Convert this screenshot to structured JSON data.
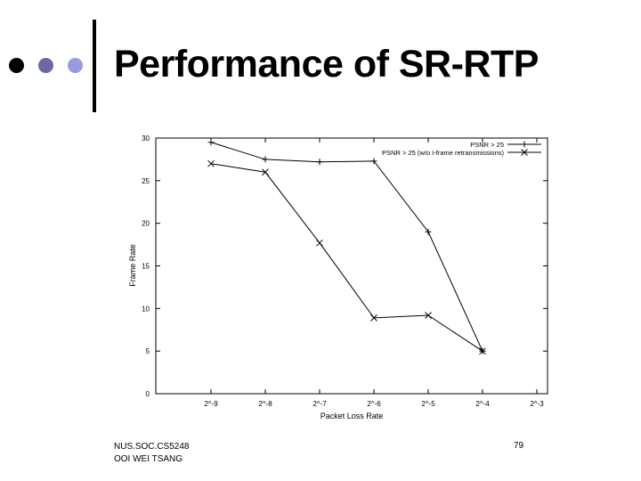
{
  "slide": {
    "title": "Performance of SR-RTP",
    "footer_line1": "NUS.SOC.CS5248",
    "footer_line2": "OOI WEI TSANG",
    "page_number": "79",
    "bullet_colors": [
      "#000000",
      "#6a6aa0",
      "#9a9ae0"
    ]
  },
  "chart_data": {
    "type": "line",
    "xlabel": "Packet Loss Rate",
    "ylabel": "Frame Rate",
    "categories": [
      "2^-9",
      "2^-8",
      "2^-7",
      "2^-6",
      "2^-5",
      "2^-4",
      "2^-3"
    ],
    "ylim": [
      0,
      30
    ],
    "yticks": [
      0,
      5,
      10,
      15,
      20,
      25,
      30
    ],
    "grid": false,
    "legend_position": "top-right",
    "series": [
      {
        "name": "PSNR > 25",
        "marker": "plus",
        "values": [
          29.5,
          27.5,
          27.2,
          27.3,
          19,
          5,
          null
        ]
      },
      {
        "name": "PSNR > 25 (w/o I-frame retransmissions)",
        "marker": "cross",
        "values": [
          27,
          26,
          17.7,
          8.9,
          9.2,
          5,
          null
        ]
      }
    ]
  }
}
